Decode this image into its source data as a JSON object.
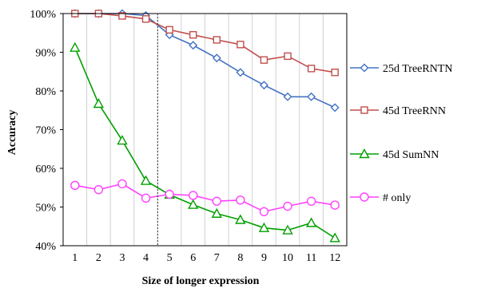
{
  "chart_data": {
    "type": "line",
    "xlabel": "Size of longer expression",
    "ylabel": "Accuracy",
    "x": [
      1,
      2,
      3,
      4,
      5,
      6,
      7,
      8,
      9,
      10,
      11,
      12
    ],
    "x_tick_labels": [
      "1",
      "2",
      "3",
      "4",
      "5",
      "6",
      "7",
      "8",
      "9",
      "10",
      "11",
      "12"
    ],
    "ylim": [
      40,
      100
    ],
    "y_ticks": [
      40,
      50,
      60,
      70,
      80,
      90,
      100
    ],
    "y_tick_labels": [
      "40%",
      "50%",
      "60%",
      "70%",
      "80%",
      "90%",
      "100%"
    ],
    "grid": "vertical",
    "legend_position": "right",
    "annotations": [
      {
        "type": "vertical-dotted-line",
        "x": 4.5
      }
    ],
    "series": [
      {
        "name": "25d TreeRNTN",
        "color": "#4472C4",
        "marker": "diamond",
        "values": [
          100,
          100,
          100,
          99.5,
          94.5,
          91.8,
          88.5,
          84.8,
          81.5,
          78.5,
          78.5,
          75.7
        ]
      },
      {
        "name": "45d TreeRNN",
        "color": "#C0504D",
        "marker": "square",
        "values": [
          100,
          100,
          99.4,
          98.6,
          95.8,
          94.5,
          93.2,
          92.0,
          88.0,
          89.0,
          85.8,
          84.8
        ]
      },
      {
        "name": "45d SumNN",
        "color": "#00A000",
        "marker": "triangle",
        "values": [
          91.2,
          76.7,
          67.2,
          56.8,
          53.2,
          50.6,
          48.3,
          46.7,
          44.6,
          44.0,
          45.9,
          42.0
        ]
      },
      {
        "name": "# only",
        "color": "#FF40FF",
        "marker": "circle",
        "values": [
          55.6,
          54.5,
          56.0,
          52.3,
          53.3,
          53.0,
          51.5,
          51.8,
          48.8,
          50.2,
          51.5,
          50.5
        ]
      }
    ]
  }
}
